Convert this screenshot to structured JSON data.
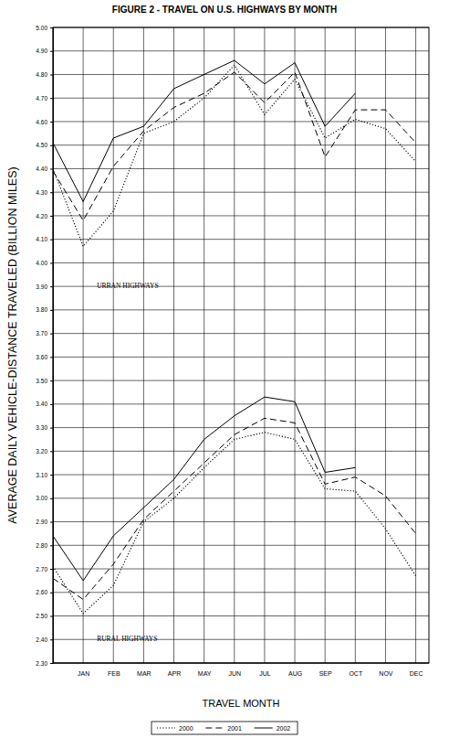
{
  "chart_data": {
    "type": "line",
    "title": "FIGURE 2 - TRAVEL ON U.S. HIGHWAYS BY MONTH",
    "x_label": "TRAVEL MONTH",
    "y_label": "AVERAGE DAILY VEHICLE-DISTANCE TRAVELED (BILLION MILES)",
    "annotations": [
      "URBAN HIGHWAYS",
      "RURAL HIGHWAYS"
    ],
    "categories": [
      null,
      "JAN",
      "FEB",
      "MAR",
      "APR",
      "MAY",
      "JUN",
      "JUL",
      "AUG",
      "SEP",
      "OCT",
      "NOV",
      "DEC"
    ],
    "ylim": [
      2.3,
      5.0
    ],
    "yticks": [
      {
        "value": 2.3,
        "label": "2.30"
      },
      {
        "value": 2.4,
        "label": "2.40"
      },
      {
        "value": 2.5,
        "label": "2.50"
      },
      {
        "value": 2.6,
        "label": "2.60"
      },
      {
        "value": 2.7,
        "label": "2.70"
      },
      {
        "value": 2.8,
        "label": "2.80"
      },
      {
        "value": 2.9,
        "label": "2.90"
      },
      {
        "value": 3.0,
        "label": "3.00"
      },
      {
        "value": 3.1,
        "label": "3.10"
      },
      {
        "value": 3.2,
        "label": "3.20"
      },
      {
        "value": 3.3,
        "label": "3.30"
      },
      {
        "value": 3.4,
        "label": "3.40"
      },
      {
        "value": 3.5,
        "label": "3.50"
      },
      {
        "value": 3.6,
        "label": "3.60"
      },
      {
        "value": 3.7,
        "label": "3.70"
      },
      {
        "value": 3.8,
        "label": "3.80"
      },
      {
        "value": 3.9,
        "label": "3.90"
      },
      {
        "value": 4.0,
        "label": "4.00"
      },
      {
        "value": 4.1,
        "label": "4.10"
      },
      {
        "value": 4.2,
        "label": "4.20"
      },
      {
        "value": 4.3,
        "label": "4.30"
      },
      {
        "value": 4.4,
        "label": "4.40"
      },
      {
        "value": 4.5,
        "label": "4.50"
      },
      {
        "value": 4.6,
        "label": "4.60"
      },
      {
        "value": 4.7,
        "label": "4.70"
      },
      {
        "value": 4.8,
        "label": "4.80"
      },
      {
        "value": 4.9,
        "label": "4.90"
      },
      {
        "value": 5.0,
        "label": "5.00"
      }
    ],
    "grid": true,
    "legend": "bottom",
    "series": [
      {
        "name": "2000",
        "color": "#000000",
        "line_style": "dotted",
        "values": [
          4.4,
          4.07,
          4.22,
          4.55,
          4.6,
          4.7,
          4.84,
          4.63,
          4.78,
          4.53,
          4.61,
          4.57,
          4.43
        ]
      },
      {
        "name": "2001",
        "color": "#000000",
        "line_style": "dashed",
        "values": [
          4.39,
          4.18,
          4.41,
          4.56,
          4.66,
          4.72,
          4.81,
          4.68,
          4.81,
          4.45,
          4.65,
          4.65,
          4.51
        ]
      },
      {
        "name": "2002",
        "color": "#000000",
        "line_style": "solid",
        "values": [
          4.51,
          4.26,
          4.53,
          4.58,
          4.74,
          4.8,
          4.86,
          4.76,
          4.85,
          4.58,
          4.72,
          null,
          null
        ]
      },
      {
        "color": "#000000",
        "line_style": "dotted",
        "values": [
          2.71,
          2.51,
          2.63,
          2.9,
          3.0,
          3.13,
          3.25,
          3.28,
          3.25,
          3.04,
          3.03,
          2.87,
          2.67
        ]
      },
      {
        "color": "#000000",
        "line_style": "dashed",
        "values": [
          2.66,
          2.57,
          2.72,
          2.91,
          3.03,
          3.15,
          3.27,
          3.34,
          3.32,
          3.06,
          3.09,
          3.01,
          2.85
        ]
      },
      {
        "color": "#000000",
        "line_style": "solid",
        "values": [
          2.84,
          2.65,
          2.84,
          2.96,
          3.08,
          3.25,
          3.35,
          3.43,
          3.41,
          3.11,
          3.13,
          null,
          null
        ]
      }
    ]
  }
}
